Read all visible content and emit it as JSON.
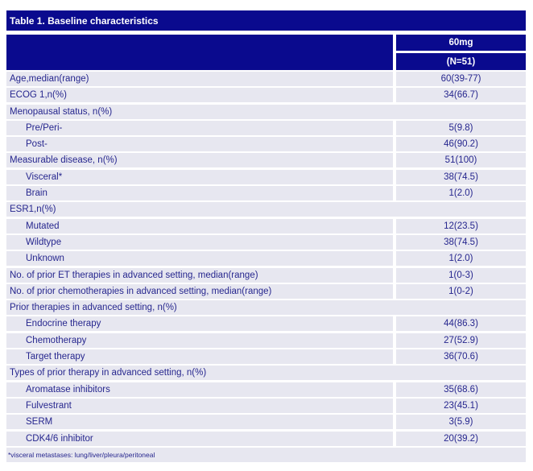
{
  "table": {
    "title": "Table 1. Baseline characteristics",
    "column_header": {
      "dose": "60mg",
      "n": "(N=51)"
    },
    "rows": [
      {
        "label": "Age,median(range)",
        "value": "60(39-77)",
        "indent": false,
        "group": false
      },
      {
        "label": "ECOG 1,n(%)",
        "value": "34(66.7)",
        "indent": false,
        "group": false
      },
      {
        "label": "Menopausal status, n(%)",
        "value": "",
        "indent": false,
        "group": true
      },
      {
        "label": "Pre/Peri-",
        "value": "5(9.8)",
        "indent": true,
        "group": false
      },
      {
        "label": "Post-",
        "value": "46(90.2)",
        "indent": true,
        "group": false
      },
      {
        "label": "Measurable disease, n(%)",
        "value": "51(100)",
        "indent": false,
        "group": false
      },
      {
        "label": "Visceral*",
        "value": "38(74.5)",
        "indent": true,
        "group": false
      },
      {
        "label": "Brain",
        "value": "1(2.0)",
        "indent": true,
        "group": false
      },
      {
        "label": "ESR1,n(%)",
        "value": "",
        "indent": false,
        "group": true
      },
      {
        "label": "Mutated",
        "value": "12(23.5)",
        "indent": true,
        "group": false
      },
      {
        "label": "Wildtype",
        "value": "38(74.5)",
        "indent": true,
        "group": false
      },
      {
        "label": "Unknown",
        "value": "1(2.0)",
        "indent": true,
        "group": false
      },
      {
        "label": "No. of prior ET therapies in advanced setting, median(range)",
        "value": "1(0-3)",
        "indent": false,
        "group": false
      },
      {
        "label": "No. of prior chemotherapies in advanced setting, median(range)",
        "value": "1(0-2)",
        "indent": false,
        "group": false
      },
      {
        "label": "Prior therapies in advanced setting, n(%)",
        "value": "",
        "indent": false,
        "group": true
      },
      {
        "label": "Endocrine therapy",
        "value": "44(86.3)",
        "indent": true,
        "group": false
      },
      {
        "label": "Chemotherapy",
        "value": "27(52.9)",
        "indent": true,
        "group": false
      },
      {
        "label": "Target therapy",
        "value": "36(70.6)",
        "indent": true,
        "group": false
      },
      {
        "label": "Types of prior therapy in advanced setting, n(%)",
        "value": "",
        "indent": false,
        "group": true
      },
      {
        "label": "Aromatase inhibitors",
        "value": "35(68.6)",
        "indent": true,
        "group": false
      },
      {
        "label": "Fulvestrant",
        "value": "23(45.1)",
        "indent": true,
        "group": false
      },
      {
        "label": "SERM",
        "value": "3(5.9)",
        "indent": true,
        "group": false
      },
      {
        "label": "CDK4/6 inhibitor",
        "value": "20(39.2)",
        "indent": true,
        "group": false
      }
    ],
    "footnote": "*visceral metastases: lung/liver/pleura/peritoneal"
  },
  "colors": {
    "header_bg": "#0a0a8e",
    "header_text": "#ffffff",
    "row_bg": "#e7e7f0",
    "text": "#26268e"
  }
}
